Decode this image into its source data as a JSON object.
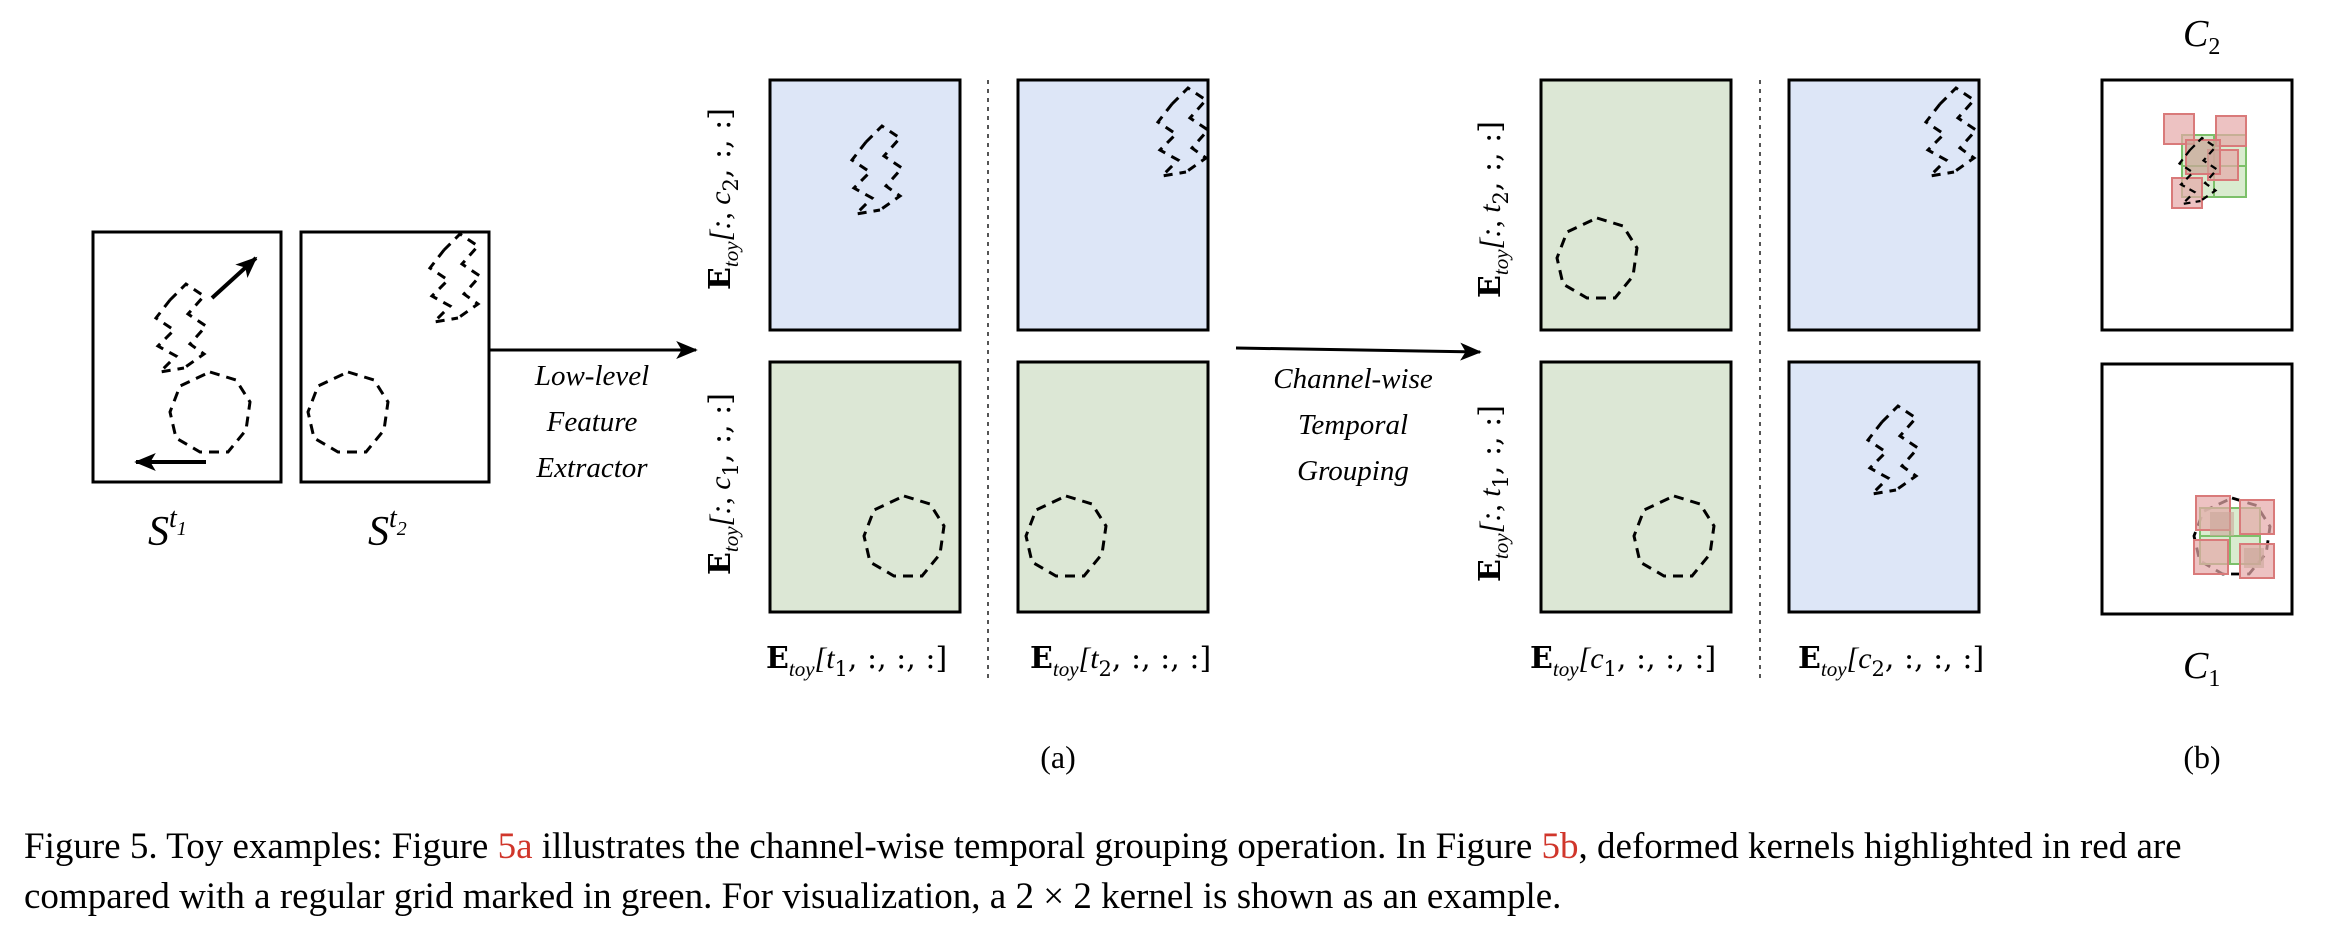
{
  "panel_a": {
    "input_labels": {
      "s1_base": "S",
      "s1_sup": "t",
      "s1_sub": "1",
      "s2_base": "S",
      "s2_sup": "t",
      "s2_sub": "2"
    },
    "arrow1_lines": [
      "Low-level",
      "Feature",
      "Extractor"
    ],
    "arrow2_lines": [
      "Channel-wise",
      "Temporal",
      "Grouping"
    ],
    "group1": {
      "row_labels": [
        "E",
        "toy",
        "[:, c",
        "2",
        ", :, :]",
        "[:, c",
        "1",
        ", :, :]"
      ],
      "col_labels": [
        "E",
        "toy",
        "[t",
        "1",
        ", :, :, :]",
        "[t",
        "2",
        ", :, :, :]"
      ]
    },
    "group2": {
      "row_labels": [
        "E",
        "toy",
        "[:, t",
        "2",
        ", :, :]",
        "[:, t",
        "1",
        ", :, :]"
      ],
      "col_labels": [
        "E",
        "toy",
        "[c",
        "1",
        ", :, :, :]",
        "[c",
        "2",
        ", :, :, :]"
      ]
    },
    "sublabel": "(a)"
  },
  "panel_b": {
    "top_label_base": "C",
    "top_label_sub": "2",
    "bottom_label_base": "C",
    "bottom_label_sub": "1",
    "sublabel": "(b)"
  },
  "caption": {
    "part1": "Figure 5. Toy examples: Figure ",
    "ref1": "5a",
    "part2": " illustrates the channel-wise temporal grouping operation. In Figure ",
    "ref2": "5b",
    "part3": ", deformed kernels highlighted in red are compared with a regular grid marked in green. For visualization, a 2 × 2 kernel is shown as an example."
  },
  "colors": {
    "blue_fill": "#dde6f7",
    "green_fill": "#dce7d5",
    "kernel_red": "#e8a0a0",
    "kernel_green": "#9fd28f",
    "ref_red": "#d0362b"
  }
}
